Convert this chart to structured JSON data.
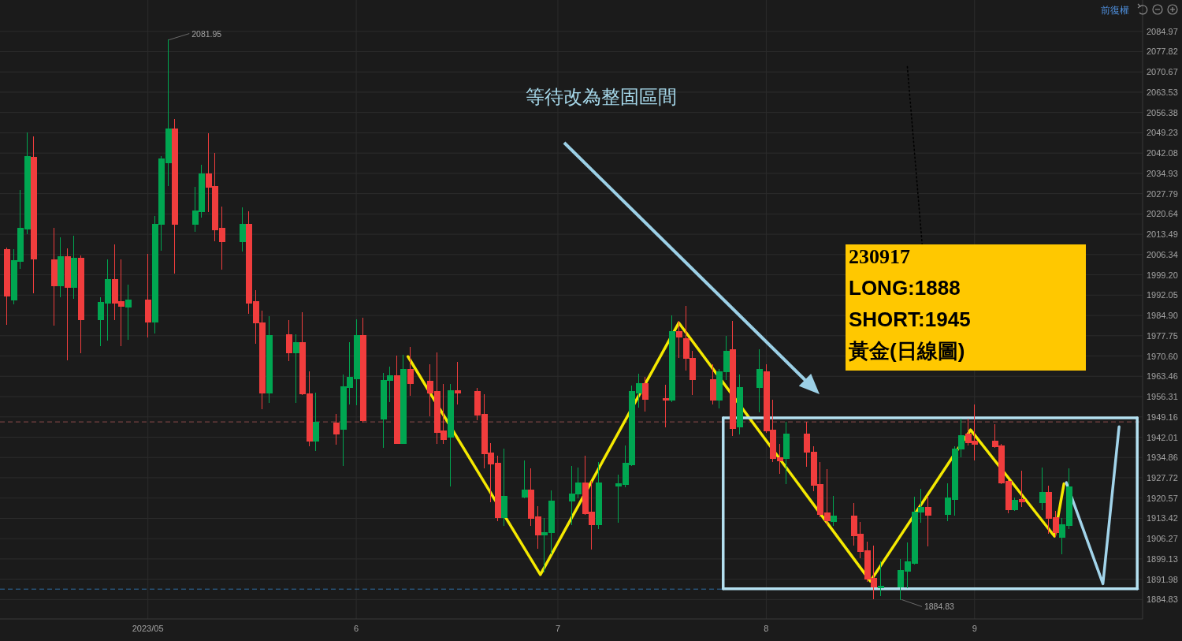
{
  "chart_data": {
    "type": "candlestick",
    "x": [
      "2023-04-10",
      "2023-04-11",
      "2023-04-12",
      "2023-04-13",
      "2023-04-14",
      "2023-04-17",
      "2023-04-18",
      "2023-04-19",
      "2023-04-20",
      "2023-04-21",
      "2023-04-24",
      "2023-04-25",
      "2023-04-26",
      "2023-04-27",
      "2023-04-28",
      "2023-05-01",
      "2023-05-02",
      "2023-05-03",
      "2023-05-04",
      "2023-05-05",
      "2023-05-08",
      "2023-05-09",
      "2023-05-10",
      "2023-05-11",
      "2023-05-12",
      "2023-05-15",
      "2023-05-16",
      "2023-05-17",
      "2023-05-18",
      "2023-05-19",
      "2023-05-22",
      "2023-05-23",
      "2023-05-24",
      "2023-05-25",
      "2023-05-26",
      "2023-05-29",
      "2023-05-30",
      "2023-05-31",
      "2023-06-01",
      "2023-06-02",
      "2023-06-05",
      "2023-06-06",
      "2023-06-07",
      "2023-06-08",
      "2023-06-09",
      "2023-06-12",
      "2023-06-13",
      "2023-06-14",
      "2023-06-15",
      "2023-06-16",
      "2023-06-19",
      "2023-06-20",
      "2023-06-21",
      "2023-06-22",
      "2023-06-23",
      "2023-06-26",
      "2023-06-27",
      "2023-06-28",
      "2023-06-29",
      "2023-06-30",
      "2023-07-03",
      "2023-07-04",
      "2023-07-05",
      "2023-07-06",
      "2023-07-07",
      "2023-07-10",
      "2023-07-11",
      "2023-07-12",
      "2023-07-13",
      "2023-07-14",
      "2023-07-17",
      "2023-07-18",
      "2023-07-19",
      "2023-07-20",
      "2023-07-21",
      "2023-07-24",
      "2023-07-25",
      "2023-07-26",
      "2023-07-27",
      "2023-07-28",
      "2023-07-31",
      "2023-08-01",
      "2023-08-02",
      "2023-08-03",
      "2023-08-04",
      "2023-08-07",
      "2023-08-08",
      "2023-08-09",
      "2023-08-10",
      "2023-08-11",
      "2023-08-14",
      "2023-08-15",
      "2023-08-16",
      "2023-08-17",
      "2023-08-18",
      "2023-08-21",
      "2023-08-22",
      "2023-08-23",
      "2023-08-24",
      "2023-08-25",
      "2023-08-28",
      "2023-08-29",
      "2023-08-30",
      "2023-08-31",
      "2023-09-01",
      "2023-09-04",
      "2023-09-05",
      "2023-09-06",
      "2023-09-07",
      "2023-09-08",
      "2023-09-11",
      "2023-09-12",
      "2023-09-13",
      "2023-09-14",
      "2023-09-15"
    ],
    "ohlc": [
      [
        2008.1,
        2008.8,
        1981.6,
        1991.6
      ],
      [
        1990.2,
        2008.1,
        1988.9,
        2004.2
      ],
      [
        2003.9,
        2028.9,
        2001.4,
        2015.5
      ],
      [
        2015.3,
        2049.3,
        2013.8,
        2041.0
      ],
      [
        2040.5,
        2047.9,
        1992.8,
        2004.8
      ],
      [
        2004.6,
        2015.5,
        1981.4,
        1995.3
      ],
      [
        1995.3,
        2012.4,
        1991.4,
        2005.5
      ],
      [
        2005.5,
        2008.5,
        1969.3,
        1994.8
      ],
      [
        1994.9,
        2012.9,
        1990.9,
        2005.0
      ],
      [
        2005.0,
        2006.0,
        1971.6,
        1983.3
      ],
      [
        1983.3,
        1991.2,
        1974.2,
        1989.6
      ],
      [
        1989.1,
        2004.4,
        1976.1,
        1997.6
      ],
      [
        1997.6,
        2009.9,
        1983.3,
        1989.3
      ],
      [
        1989.9,
        2004.4,
        1974.2,
        1988.0
      ],
      [
        1987.7,
        1995.7,
        1976.4,
        1990.2
      ],
      [
        1990.2,
        2006.4,
        1977.3,
        1982.5
      ],
      [
        1982.5,
        2019.9,
        1978.6,
        2017.1
      ],
      [
        2016.9,
        2041.0,
        2007.9,
        2040.0
      ],
      [
        2038.6,
        2081.95,
        2030.5,
        2050.7
      ],
      [
        2050.5,
        2053.8,
        1999.7,
        2016.9
      ],
      [
        2016.9,
        2030.0,
        2014.4,
        2021.8
      ],
      [
        2021.5,
        2037.9,
        2019.6,
        2034.9
      ],
      [
        2034.9,
        2048.8,
        2021.5,
        2030.0
      ],
      [
        2030.3,
        2041.9,
        2011.3,
        2015.0
      ],
      [
        2015.5,
        2023.2,
        2001.1,
        2011.0
      ],
      [
        2011.0,
        2022.7,
        2007.6,
        2016.9
      ],
      [
        2016.9,
        2021.3,
        1985.5,
        1989.1
      ],
      [
        1989.7,
        1993.7,
        1975.0,
        1982.3
      ],
      [
        1982.4,
        1986.5,
        1952.0,
        1957.7
      ],
      [
        1957.7,
        1984.6,
        1954.1,
        1977.9
      ],
      [
        1978.2,
        1983.0,
        1969.0,
        1971.7
      ],
      [
        1971.7,
        1978.2,
        1954.3,
        1975.4
      ],
      [
        1975.4,
        1985.8,
        1956.9,
        1957.4
      ],
      [
        1957.4,
        1965.2,
        1939.0,
        1940.7
      ],
      [
        1940.7,
        1957.6,
        1937.2,
        1947.2
      ],
      [
        1946.9,
        1950.1,
        1939.5,
        1943.0
      ],
      [
        1944.8,
        1964.0,
        1932.1,
        1959.9
      ],
      [
        1959.6,
        1975.2,
        1953.6,
        1963.1
      ],
      [
        1962.7,
        1983.5,
        1953.4,
        1977.9
      ],
      [
        1977.9,
        1984.0,
        1947.4,
        1947.8
      ],
      [
        1948.3,
        1964.5,
        1938.3,
        1962.0
      ],
      [
        1961.9,
        1966.8,
        1954.5,
        1963.8
      ],
      [
        1963.8,
        1970.7,
        1939.8,
        1939.9
      ],
      [
        1939.9,
        1971.0,
        1939.8,
        1965.9
      ],
      [
        1965.9,
        1973.6,
        1956.6,
        1960.8
      ],
      [
        1961.7,
        1967.6,
        1949.5,
        1957.7
      ],
      [
        1958.2,
        1971.6,
        1939.9,
        1943.7
      ],
      [
        1944.1,
        1960.6,
        1939.8,
        1941.3
      ],
      [
        1942.1,
        1960.6,
        1924.9,
        1958.5
      ],
      [
        1958.5,
        1968.5,
        1953.6,
        1957.6
      ],
      [
        1958.2,
        1959.2,
        1948.0,
        1949.9
      ],
      [
        1950.1,
        1956.9,
        1931.2,
        1936.2
      ],
      [
        1936.5,
        1939.9,
        1919.3,
        1932.7
      ],
      [
        1932.8,
        1935.3,
        1912.6,
        1913.8
      ],
      [
        1913.8,
        1937.8,
        1910.8,
        1921.2
      ],
      [
        1920.8,
        1933.7,
        1920.5,
        1923.5
      ],
      [
        1923.5,
        1931.0,
        1910.9,
        1913.5
      ],
      [
        1914.0,
        1917.7,
        1902.9,
        1907.7
      ],
      [
        1907.7,
        1913.5,
        1894.5,
        1908.4
      ],
      [
        1908.4,
        1923.1,
        1901.0,
        1919.6
      ],
      [
        1919.6,
        1931.6,
        1911.2,
        1921.9
      ],
      [
        1921.9,
        1931.2,
        1920.5,
        1926.0
      ],
      [
        1925.9,
        1935.3,
        1914.9,
        1915.2
      ],
      [
        1915.6,
        1926.5,
        1902.7,
        1911.2
      ],
      [
        1911.2,
        1933.0,
        1909.8,
        1925.8
      ],
      [
        1924.8,
        1928.6,
        1912.1,
        1925.6
      ],
      [
        1925.4,
        1939.0,
        1924.5,
        1932.8
      ],
      [
        1932.3,
        1960.1,
        1932.1,
        1958.0
      ],
      [
        1957.6,
        1964.3,
        1952.5,
        1961.0
      ],
      [
        1961.0,
        1963.1,
        1951.1,
        1955.4
      ],
      [
        1955.7,
        1960.3,
        1945.5,
        1955.0
      ],
      [
        1955.2,
        1984.9,
        1954.5,
        1979.1
      ],
      [
        1979.3,
        1982.8,
        1970.1,
        1977.2
      ],
      [
        1976.8,
        1988.0,
        1965.6,
        1969.8
      ],
      [
        1969.9,
        1972.4,
        1957.1,
        1962.2
      ],
      [
        1962.4,
        1967.7,
        1953.6,
        1955.0
      ],
      [
        1955.0,
        1965.9,
        1952.3,
        1965.0
      ],
      [
        1965.0,
        1977.5,
        1962.2,
        1972.4
      ],
      [
        1972.7,
        1982.7,
        1942.5,
        1945.2
      ],
      [
        1945.5,
        1964.0,
        1943.0,
        1959.6
      ],
      [
        1959.6,
        1972.7,
        1950.8,
        1965.9
      ],
      [
        1965.2,
        1967.7,
        1943.7,
        1944.1
      ],
      [
        1944.6,
        1955.1,
        1933.3,
        1934.6
      ],
      [
        1934.9,
        1939.5,
        1929.1,
        1933.7
      ],
      [
        1934.4,
        1947.4,
        1925.6,
        1943.0
      ],
      [
        1943.2,
        1947.4,
        1931.6,
        1936.7
      ],
      [
        1936.7,
        1938.8,
        1923.1,
        1925.1
      ],
      [
        1925.4,
        1933.0,
        1914.0,
        1914.9
      ],
      [
        1915.4,
        1930.7,
        1911.2,
        1912.6
      ],
      [
        1912.4,
        1921.2,
        1911.0,
        1914.2
      ],
      [
        1914.2,
        1918.6,
        1904.1,
        1907.3
      ],
      [
        1907.8,
        1912.0,
        1899.5,
        1901.8
      ],
      [
        1902.1,
        1905.2,
        1891.1,
        1892.0
      ],
      [
        1892.4,
        1903.8,
        1885.0,
        1889.3
      ],
      [
        1889.0,
        1898.2,
        1886.2,
        1889.6
      ],
      [
        1889.3,
        1898.9,
        1884.83,
        1895.2
      ],
      [
        1894.8,
        1904.7,
        1889.0,
        1898.0
      ],
      [
        1897.5,
        1920.8,
        1897.3,
        1915.7
      ],
      [
        1915.6,
        1923.7,
        1912.1,
        1917.3
      ],
      [
        1917.3,
        1921.1,
        1903.8,
        1914.5
      ],
      [
        1914.9,
        1925.6,
        1912.6,
        1920.5
      ],
      [
        1920.2,
        1938.7,
        1914.5,
        1937.8
      ],
      [
        1937.8,
        1948.3,
        1935.1,
        1942.7
      ],
      [
        1943.0,
        1948.3,
        1939.2,
        1940.1
      ],
      [
        1940.6,
        1953.4,
        1933.9,
        1939.5
      ],
      [
        1940.6,
        1946.4,
        1938.5,
        1938.7
      ],
      [
        1939.0,
        1939.5,
        1925.6,
        1926.0
      ],
      [
        1926.5,
        1927.0,
        1915.4,
        1916.5
      ],
      [
        1916.6,
        1920.5,
        1916.3,
        1919.8
      ],
      [
        1920.2,
        1930.2,
        1917.7,
        1919.3
      ],
      [
        1919.1,
        1931.2,
        1916.6,
        1922.6
      ],
      [
        1922.6,
        1924.8,
        1908.0,
        1913.4
      ],
      [
        1913.7,
        1915.9,
        1906.9,
        1908.4
      ],
      [
        1906.8,
        1913.5,
        1901.0,
        1911.2
      ],
      [
        1910.9,
        1931.0,
        1909.8,
        1924.4
      ]
    ],
    "colors": [
      "#f03d3d",
      "#00a651",
      "#00a651",
      "#00a651",
      "#f03d3d",
      "#f03d3d",
      "#00a651",
      "#f03d3d",
      "#00a651",
      "#f03d3d",
      "#00a651",
      "#00a651",
      "#f03d3d",
      "#f03d3d",
      "#00a651",
      "#f03d3d",
      "#00a651",
      "#00a651",
      "#00a651",
      "#f03d3d",
      "#00a651",
      "#00a651",
      "#f03d3d",
      "#f03d3d",
      "#f03d3d",
      "#00a651",
      "#f03d3d",
      "#f03d3d",
      "#f03d3d",
      "#00a651",
      "#f03d3d",
      "#00a651",
      "#f03d3d",
      "#f03d3d",
      "#00a651",
      "#f03d3d",
      "#00a651",
      "#00a651",
      "#00a651",
      "#f03d3d",
      "#00a651",
      "#00a651",
      "#f03d3d",
      "#00a651",
      "#f03d3d",
      "#f03d3d",
      "#f03d3d",
      "#f03d3d",
      "#00a651",
      "#f03d3d",
      "#f03d3d",
      "#f03d3d",
      "#f03d3d",
      "#f03d3d",
      "#00a651",
      "#00a651",
      "#f03d3d",
      "#f03d3d",
      "#00a651",
      "#00a651",
      "#00a651",
      "#00a651",
      "#f03d3d",
      "#f03d3d",
      "#00a651",
      "#00a651",
      "#00a651",
      "#00a651",
      "#00a651",
      "#f03d3d",
      "#f03d3d",
      "#00a651",
      "#f03d3d",
      "#f03d3d",
      "#f03d3d",
      "#f03d3d",
      "#00a651",
      "#00a651",
      "#f03d3d",
      "#00a651",
      "#00a651",
      "#f03d3d",
      "#f03d3d",
      "#f03d3d",
      "#00a651",
      "#f03d3d",
      "#f03d3d",
      "#f03d3d",
      "#f03d3d",
      "#00a651",
      "#f03d3d",
      "#f03d3d",
      "#f03d3d",
      "#f03d3d",
      "#00a651",
      "#00a651",
      "#00a651",
      "#00a651",
      "#00a651",
      "#f03d3d",
      "#00a651",
      "#00a651",
      "#00a651",
      "#f03d3d",
      "#f03d3d",
      "#f03d3d",
      "#f03d3d",
      "#f03d3d",
      "#00a651",
      "#f03d3d",
      "#00a651",
      "#f03d3d",
      "#f03d3d",
      "#00a651",
      "#00a651"
    ],
    "series": [
      {
        "type": "line",
        "x": [
          "2023-06-08T16:48",
          "2023-06-28T09:36",
          "2023-07-19",
          "2023-08-16T12:00",
          "2023-08-31T09:36",
          "2023-09-12T21:36",
          "2023-09-14T07:12"
        ],
        "values": [
          1970.4,
          1893.6,
          1982.3,
          1891.3,
          1944.6,
          1907.1,
          1925.6
        ],
        "color": "#f5e900"
      },
      {
        "type": "line",
        "x": [
          "2023-09-14T15:36",
          "2023-09-20T02:24",
          "2023-09-22T12:00"
        ],
        "values": [
          1926.0,
          1890.4,
          1945.7
        ],
        "color": "#a2d4ea"
      },
      {
        "type": "line",
        "x": [
          "2023-07-25T14:24",
          "2023-09-25T04:48"
        ],
        "values": [
          1948.8,
          1948.8
        ],
        "color": "#b4e0f0"
      },
      {
        "type": "line",
        "x": [
          "2023-09-25T04:48",
          "2023-09-25T04:48"
        ],
        "values": [
          1948.8,
          1888.6
        ],
        "color": "#b4e0f0"
      },
      {
        "type": "line",
        "x": [
          "2023-07-25T14:24",
          "2023-09-25T04:48"
        ],
        "values": [
          1888.6,
          1888.6
        ],
        "color": "#b4e0f0"
      },
      {
        "type": "line",
        "x": [
          "2023-07-25T14:24",
          "2023-07-25T14:24"
        ],
        "values": [
          1948.8,
          1888.6
        ],
        "color": "#b4e0f0"
      },
      {
        "type": "line",
        "x": [
          "2023-08-22",
          "2023-08-24T04:48"
        ],
        "values": [
          2072.5,
          2009.9
        ],
        "color": "#000000",
        "line_style": "dotted"
      }
    ],
    "ref_lines": [
      {
        "axis": "y",
        "value": 1947.4,
        "color": "#8c4b4b",
        "line_style": "dashed"
      },
      {
        "axis": "y",
        "value": 1888.5,
        "color": "#2e6da4",
        "line_style": "dashed"
      }
    ],
    "annotations": [
      "等待改為整固區間",
      "230917",
      "LONG:1888",
      "SHORT:1945",
      "黃金(日線圖)",
      {
        "text": "2081.95",
        "x": "2023-05-04",
        "y": 2081.95
      },
      {
        "text": "1884.83",
        "x": "2023-08-21",
        "y": 1884.83
      },
      "前復權"
    ],
    "xlim": [
      "2023-04-09",
      "2023-09-26"
    ],
    "xticks": [
      {
        "value": "2023-05-01",
        "label": "2023/05"
      },
      {
        "value": "2023-06-01",
        "label": "6"
      },
      {
        "value": "2023-07-01",
        "label": "7"
      },
      {
        "value": "2023-08-01",
        "label": "8"
      },
      {
        "value": "2023-09-01",
        "label": "9"
      }
    ],
    "ylim": [
      1878,
      2096
    ],
    "yticks": [
      2084.97,
      2077.82,
      2070.67,
      2063.53,
      2056.38,
      2049.23,
      2042.08,
      2034.93,
      2027.79,
      2020.64,
      2013.49,
      2006.34,
      {
        "value": 1999.2,
        "label": "1999.20"
      },
      1992.05,
      {
        "value": 1984.9,
        "label": "1984.90"
      },
      1977.75,
      {
        "value": 1970.6,
        "label": "1970.60"
      },
      1963.46,
      1956.31,
      1949.16,
      1942.01,
      1934.86,
      1927.72,
      1920.57,
      1913.42,
      1906.27,
      1899.13,
      1891.98,
      1884.83
    ],
    "grid": true,
    "line_style": "solid"
  }
}
